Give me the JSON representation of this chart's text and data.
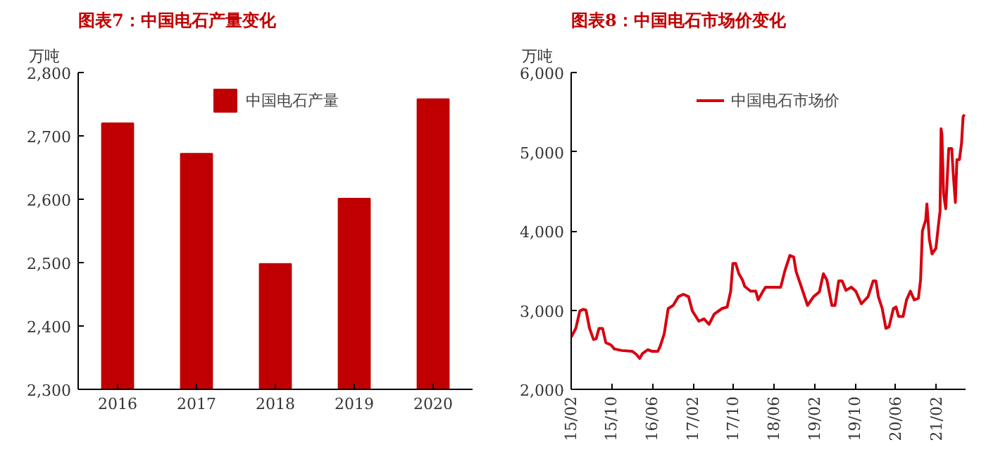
{
  "chart_data": [
    {
      "type": "bar",
      "title": "图表7：中国电石产量变化",
      "ylabel": "万吨",
      "categories": [
        "2016",
        "2017",
        "2018",
        "2019",
        "2020"
      ],
      "series": [
        {
          "name": "中国电石产量",
          "color": "#c00000",
          "values": [
            2720,
            2672,
            2498,
            2601,
            2758
          ]
        }
      ],
      "ylim": [
        2300,
        2800
      ],
      "yticks": [
        {
          "value": 2300,
          "label": "2,300"
        },
        {
          "value": 2400,
          "label": "2,400"
        },
        {
          "value": 2500,
          "label": "2,500"
        },
        {
          "value": 2600,
          "label": "2,600"
        },
        {
          "value": 2700,
          "label": "2,700"
        },
        {
          "value": 2800,
          "label": "2,800"
        }
      ],
      "legend": "top",
      "grid": false
    },
    {
      "type": "line",
      "title": "图表8：中国电石市场价变化",
      "ylabel": "万吨",
      "x": [
        "2015-02-01",
        "2015-03-01",
        "2015-03-25",
        "2015-04-15",
        "2015-05-01",
        "2015-05-22",
        "2015-06-15",
        "2015-07-01",
        "2015-07-18",
        "2015-08-08",
        "2015-08-28",
        "2015-09-28",
        "2015-10-18",
        "2015-12-03",
        "2016-02-03",
        "2016-02-28",
        "2016-03-18",
        "2016-04-03",
        "2016-05-05",
        "2016-06-01",
        "2016-07-05",
        "2016-07-20",
        "2016-08-12",
        "2016-09-05",
        "2016-10-05",
        "2016-11-05",
        "2016-12-05",
        "2017-01-05",
        "2017-01-28",
        "2017-03-08",
        "2017-04-08",
        "2017-05-08",
        "2017-06-08",
        "2017-07-25",
        "2017-08-25",
        "2017-09-15",
        "2017-09-28",
        "2017-10-15",
        "2017-11-03",
        "2017-11-25",
        "2017-12-08",
        "2018-01-12",
        "2018-02-12",
        "2018-02-27",
        "2018-03-28",
        "2018-04-12",
        "2018-05-28",
        "2018-07-12",
        "2018-08-05",
        "2018-09-05",
        "2018-09-28",
        "2018-10-12",
        "2018-11-15",
        "2018-12-20",
        "2019-01-25",
        "2019-03-01",
        "2019-03-25",
        "2019-04-15",
        "2019-05-15",
        "2019-06-03",
        "2019-06-25",
        "2019-07-15",
        "2019-08-08",
        "2019-09-08",
        "2019-10-05",
        "2019-11-08",
        "2019-12-18",
        "2020-01-18",
        "2020-02-03",
        "2020-02-18",
        "2020-03-12",
        "2020-04-03",
        "2020-04-22",
        "2020-05-18",
        "2020-06-03",
        "2020-06-18",
        "2020-07-15",
        "2020-08-05",
        "2020-08-28",
        "2020-09-20",
        "2020-10-15",
        "2020-10-28",
        "2020-11-08",
        "2020-11-28",
        "2020-12-05",
        "2020-12-20",
        "2021-01-05",
        "2021-01-28",
        "2021-02-12",
        "2021-02-22",
        "2021-02-28",
        "2021-03-05",
        "2021-03-15",
        "2021-03-28",
        "2021-04-15",
        "2021-05-03",
        "2021-05-12",
        "2021-05-25",
        "2021-06-03",
        "2021-06-18",
        "2021-07-01",
        "2021-07-10",
        "2021-07-18"
      ],
      "series": [
        {
          "name": "中国电石市场价",
          "color": "#d7000f",
          "values": [
            2660,
            2770,
            2990,
            3010,
            3000,
            2770,
            2630,
            2640,
            2770,
            2770,
            2590,
            2560,
            2510,
            2490,
            2480,
            2440,
            2390,
            2450,
            2500,
            2480,
            2480,
            2550,
            2700,
            3020,
            3060,
            3170,
            3200,
            3170,
            2990,
            2860,
            2890,
            2820,
            2950,
            3020,
            3040,
            3240,
            3590,
            3590,
            3460,
            3380,
            3300,
            3240,
            3240,
            3130,
            3240,
            3290,
            3290,
            3290,
            3490,
            3690,
            3670,
            3490,
            3280,
            3060,
            3170,
            3230,
            3460,
            3380,
            3060,
            3060,
            3370,
            3370,
            3250,
            3290,
            3240,
            3080,
            3170,
            3370,
            3370,
            3170,
            3020,
            2770,
            2790,
            3020,
            3040,
            2920,
            2920,
            3130,
            3240,
            3130,
            3150,
            3380,
            4000,
            4140,
            4340,
            3890,
            3710,
            3780,
            4070,
            4250,
            5290,
            5220,
            4470,
            4280,
            5040,
            5040,
            4720,
            4360,
            4900,
            4900,
            5110,
            5440,
            5470
          ]
        }
      ],
      "xlim": [
        "2015-02-01",
        "2021-07-25"
      ],
      "xticks": [
        {
          "value": "2015-02-01",
          "label": "15/02"
        },
        {
          "value": "2015-10-01",
          "label": "15/10"
        },
        {
          "value": "2016-06-01",
          "label": "16/06"
        },
        {
          "value": "2017-02-01",
          "label": "17/02"
        },
        {
          "value": "2017-10-01",
          "label": "17/10"
        },
        {
          "value": "2018-06-01",
          "label": "18/06"
        },
        {
          "value": "2019-02-01",
          "label": "19/02"
        },
        {
          "value": "2019-10-01",
          "label": "19/10"
        },
        {
          "value": "2020-06-01",
          "label": "20/06"
        },
        {
          "value": "2021-02-01",
          "label": "21/02"
        }
      ],
      "ylim": [
        2000,
        6000
      ],
      "yticks": [
        {
          "value": 2000,
          "label": "2,000"
        },
        {
          "value": 3000,
          "label": "3,000"
        },
        {
          "value": 4000,
          "label": "4,000"
        },
        {
          "value": 5000,
          "label": "5,000"
        },
        {
          "value": 6000,
          "label": "6,000"
        }
      ],
      "legend": "top",
      "grid": false,
      "line_style": "solid",
      "marker": "none"
    }
  ]
}
